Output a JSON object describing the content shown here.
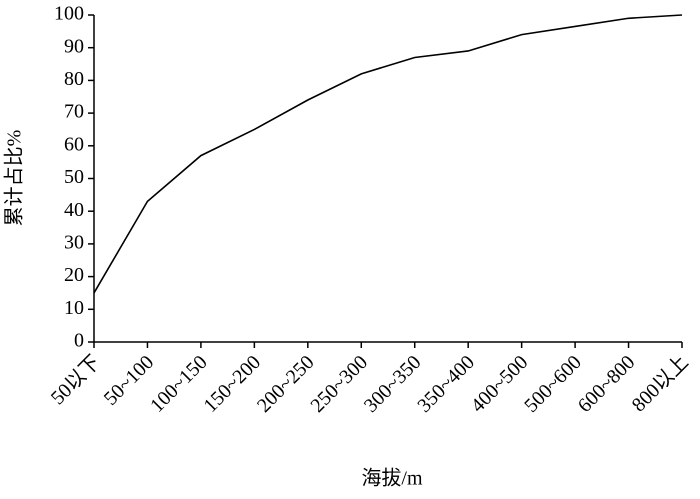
{
  "chart_data": {
    "type": "line",
    "x_label": "海拔/m",
    "y_label": "累计占比%",
    "categories": [
      "50以下",
      "50~100",
      "100~150",
      "150~200",
      "200~250",
      "250~300",
      "300~350",
      "350~400",
      "400~500",
      "500~600",
      "600~800",
      "800以上"
    ],
    "values": [
      15,
      43,
      57,
      65,
      74,
      82,
      87,
      89,
      94,
      96.5,
      99,
      100
    ],
    "color": "#000000",
    "ylim": [
      0,
      100
    ],
    "yticks": [
      0,
      10,
      20,
      30,
      40,
      50,
      60,
      70,
      80,
      90,
      100
    ],
    "grid": false
  }
}
